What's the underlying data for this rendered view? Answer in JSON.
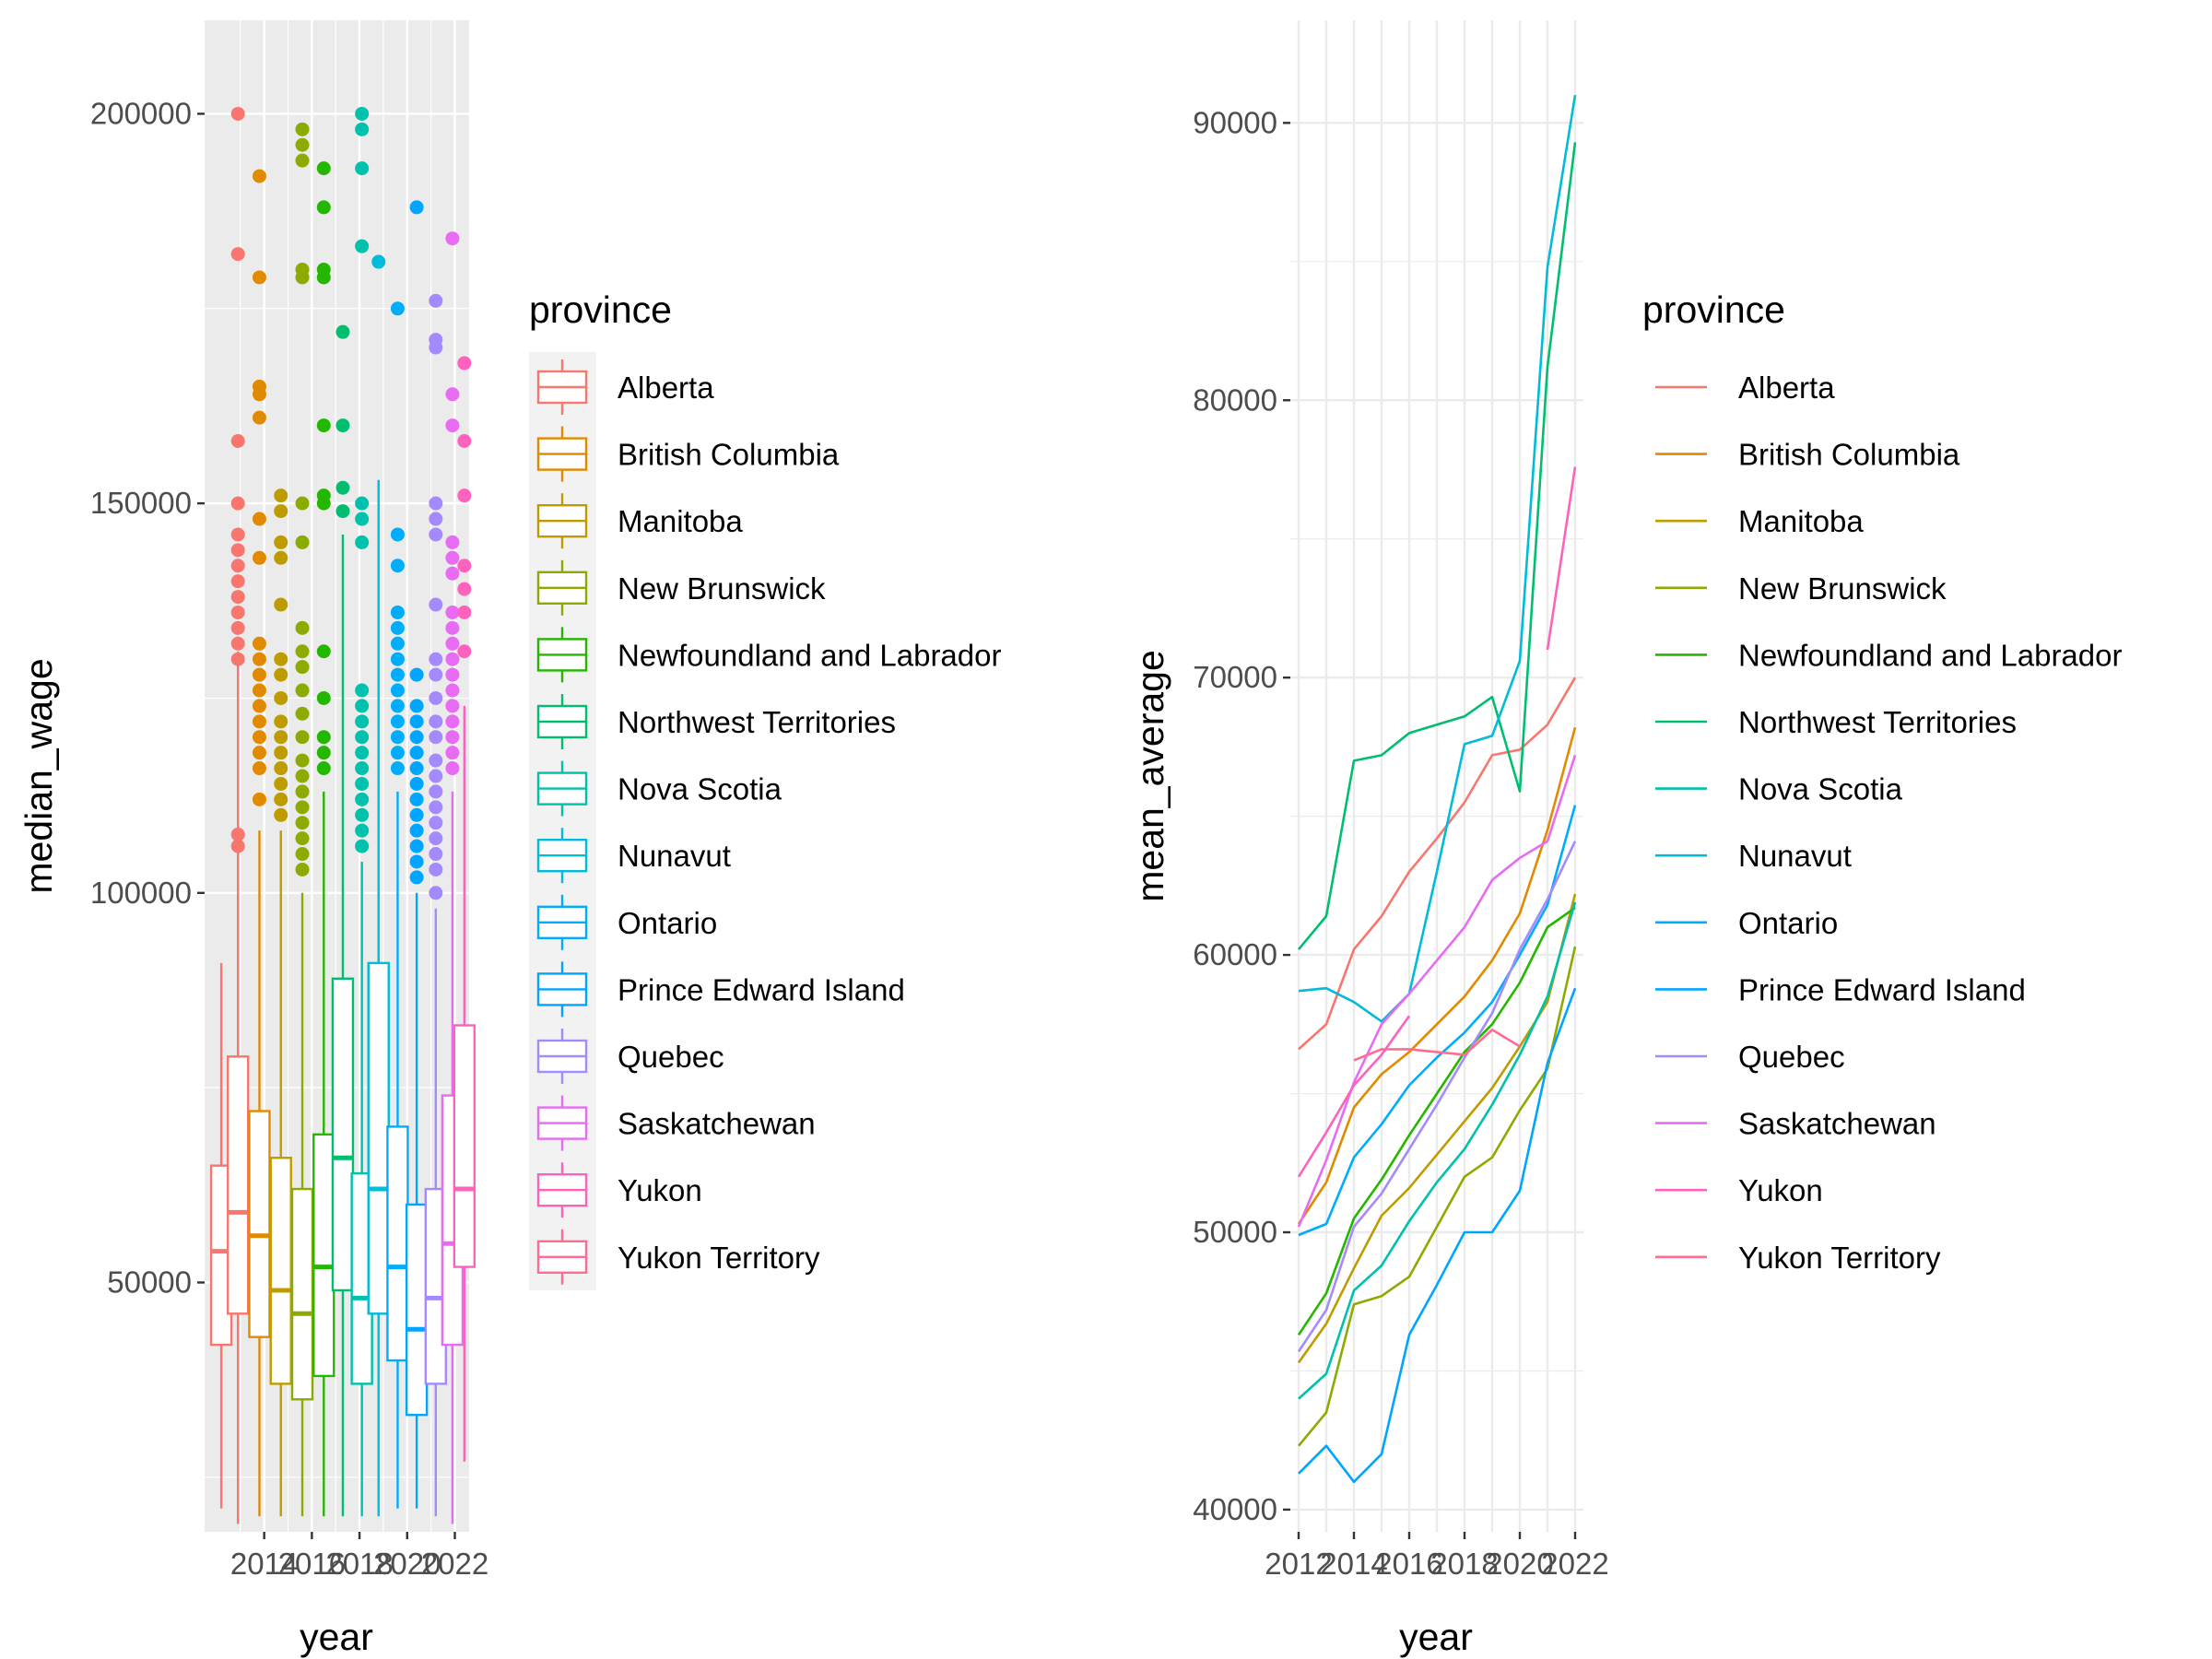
{
  "chart_data": [
    {
      "type": "box",
      "xlabel": "year",
      "ylabel": "median_wage",
      "x_ticks": [
        "2014",
        "2016",
        "2018",
        "2020",
        "2022"
      ],
      "y_ticks": [
        "50000",
        "100000",
        "150000",
        "200000"
      ],
      "ylim": [
        18000,
        212000
      ],
      "xlim": [
        2011.5,
        2022.6
      ],
      "grid": true,
      "legend": {
        "title": "province",
        "position": "right",
        "key": "boxplot"
      },
      "boxes": [
        {
          "province": "Alberta",
          "x": 2012.2,
          "q1": 42000,
          "median": 54000,
          "q3": 65000,
          "low": 21000,
          "high": 91000,
          "outliers": []
        },
        {
          "province": "Alberta",
          "x": 2012.9,
          "q1": 46000,
          "median": 59000,
          "q3": 79000,
          "low": 19000,
          "high": 131000,
          "outliers": [
            106000,
            107500,
            130000,
            132000,
            134000,
            136000,
            138000,
            140000,
            142000,
            144000,
            146000,
            150000,
            158000,
            182000,
            200000
          ]
        },
        {
          "province": "British Columbia",
          "x": 2013.8,
          "q1": 43000,
          "median": 56000,
          "q3": 72000,
          "low": 20000,
          "high": 108000,
          "outliers": [
            112000,
            116000,
            118000,
            120000,
            122000,
            124000,
            126000,
            128000,
            130000,
            132000,
            143000,
            148000,
            161000,
            164000,
            165000,
            179000,
            192000
          ]
        },
        {
          "province": "Manitoba",
          "x": 2014.7,
          "q1": 37000,
          "median": 49000,
          "q3": 66000,
          "low": 20000,
          "high": 108000,
          "outliers": [
            110000,
            112000,
            114000,
            116000,
            118000,
            120000,
            122000,
            125000,
            128000,
            130000,
            137000,
            143000,
            145000,
            149000,
            151000
          ]
        },
        {
          "province": "New Brunswick",
          "x": 2015.6,
          "q1": 35000,
          "median": 46000,
          "q3": 62000,
          "low": 20000,
          "high": 100000,
          "outliers": [
            103000,
            105000,
            107000,
            109000,
            111000,
            113000,
            115000,
            117000,
            120000,
            123000,
            126000,
            129000,
            131000,
            134000,
            145000,
            150000,
            179000,
            180000,
            194000,
            196000,
            198000
          ]
        },
        {
          "province": "Newfoundland and Labrador",
          "x": 2016.5,
          "q1": 38000,
          "median": 52000,
          "q3": 69000,
          "low": 20000,
          "high": 113000,
          "outliers": [
            116000,
            118000,
            120000,
            125000,
            131000,
            150000,
            151000,
            160000,
            179000,
            180000,
            188000,
            193000
          ]
        },
        {
          "province": "Northwest Territories",
          "x": 2017.3,
          "q1": 49000,
          "median": 66000,
          "q3": 89000,
          "low": 20000,
          "high": 146000,
          "outliers": [
            149000,
            152000,
            160000,
            172000
          ]
        },
        {
          "province": "Nova Scotia",
          "x": 2018.1,
          "q1": 37000,
          "median": 48000,
          "q3": 64000,
          "low": 20000,
          "high": 104000,
          "outliers": [
            106000,
            108000,
            110000,
            112000,
            114000,
            116000,
            118000,
            120000,
            122000,
            124000,
            126000,
            145000,
            148000,
            150000,
            183000,
            193000,
            198000,
            200000
          ]
        },
        {
          "province": "Nunavut",
          "x": 2018.8,
          "q1": 46000,
          "median": 62000,
          "q3": 91000,
          "low": 20000,
          "high": 153000,
          "outliers": [
            181000
          ]
        },
        {
          "province": "Ontario",
          "x": 2019.6,
          "q1": 40000,
          "median": 52000,
          "q3": 70000,
          "low": 21000,
          "high": 113000,
          "outliers": [
            116000,
            118000,
            120000,
            122000,
            124000,
            126000,
            128000,
            130000,
            132000,
            134000,
            136000,
            142000,
            146000,
            175000
          ]
        },
        {
          "province": "Prince Edward Island",
          "x": 2020.4,
          "q1": 33000,
          "median": 44000,
          "q3": 60000,
          "low": 21000,
          "high": 100000,
          "outliers": [
            102000,
            104000,
            106000,
            108000,
            110000,
            112000,
            114000,
            116000,
            118000,
            120000,
            122000,
            124000,
            128000,
            188000
          ]
        },
        {
          "province": "Quebec",
          "x": 2021.2,
          "q1": 37000,
          "median": 48000,
          "q3": 62000,
          "low": 20000,
          "high": 98000,
          "outliers": [
            100000,
            103000,
            105000,
            107000,
            109000,
            111000,
            113000,
            115000,
            117000,
            120000,
            122000,
            125000,
            128000,
            130000,
            137000,
            146000,
            148000,
            150000,
            170000,
            171000,
            176000
          ]
        },
        {
          "province": "Saskatchewan",
          "x": 2021.9,
          "q1": 42000,
          "median": 55000,
          "q3": 74000,
          "low": 19000,
          "high": 113000,
          "outliers": [
            116000,
            118000,
            120000,
            122000,
            124000,
            126000,
            128000,
            130000,
            132000,
            134000,
            136000,
            141000,
            143000,
            145000,
            160000,
            164000,
            184000
          ]
        },
        {
          "province": "Yukon",
          "x": 2022.4,
          "q1": 52000,
          "median": 62000,
          "q3": 83000,
          "low": 27000,
          "high": 124000,
          "outliers": [
            131000,
            136000,
            139000,
            142000,
            151000,
            158000,
            168000
          ]
        }
      ]
    },
    {
      "type": "line",
      "xlabel": "year",
      "ylabel": "mean_average",
      "x_ticks": [
        "2012",
        "2014",
        "2016",
        "2018",
        "2020",
        "2022"
      ],
      "y_ticks": [
        "40000",
        "50000",
        "60000",
        "70000",
        "80000",
        "90000"
      ],
      "ylim": [
        39200,
        93700
      ],
      "xlim": [
        2011.7,
        2022.3
      ],
      "grid": true,
      "legend": {
        "title": "province",
        "position": "right",
        "key": "line"
      },
      "x": [
        2012,
        2013,
        2014,
        2015,
        2016,
        2017,
        2018,
        2019,
        2020,
        2021,
        2022
      ],
      "series": [
        {
          "name": "Alberta",
          "values": [
            56600,
            57500,
            60200,
            61400,
            63000,
            64200,
            65500,
            67200,
            67400,
            68300,
            70000
          ]
        },
        {
          "name": "British Columbia",
          "values": [
            50300,
            51800,
            54500,
            55700,
            56500,
            57500,
            58500,
            59800,
            61500,
            64500,
            68200
          ]
        },
        {
          "name": "Manitoba",
          "values": [
            45300,
            46700,
            48700,
            50600,
            51600,
            52800,
            54000,
            55200,
            56700,
            58300,
            62200
          ]
        },
        {
          "name": "New Brunswick",
          "values": [
            42300,
            43500,
            47400,
            47700,
            48400,
            50200,
            52000,
            52700,
            54400,
            55900,
            60300
          ]
        },
        {
          "name": "Newfoundland and Labrador",
          "values": [
            46300,
            47800,
            50500,
            51900,
            53500,
            55000,
            56500,
            57500,
            59000,
            61000,
            61700
          ]
        },
        {
          "name": "Northwest Territories",
          "values": [
            60200,
            61400,
            67000,
            67200,
            68000,
            68300,
            68600,
            69300,
            65900,
            81200,
            89300
          ]
        },
        {
          "name": "Nova Scotia",
          "values": [
            44000,
            44900,
            47900,
            48800,
            50400,
            51800,
            53000,
            54600,
            56400,
            58500,
            61900
          ]
        },
        {
          "name": "Nunavut",
          "values": [
            58700,
            58800,
            58300,
            57600,
            58600,
            63000,
            67600,
            67900,
            70600,
            84800,
            91000
          ]
        },
        {
          "name": "Ontario",
          "values": [
            49900,
            50300,
            52700,
            53900,
            55300,
            56300,
            57200,
            58300,
            60000,
            61800,
            65400
          ]
        },
        {
          "name": "Prince Edward Island",
          "values": [
            41300,
            42300,
            41000,
            42000,
            46300,
            48100,
            50000,
            50000,
            51500,
            56100,
            58800
          ]
        },
        {
          "name": "Quebec",
          "values": [
            45700,
            47200,
            50200,
            51400,
            53000,
            54600,
            56300,
            57900,
            60200,
            62000,
            64100
          ]
        },
        {
          "name": "Saskatchewan",
          "values": [
            50200,
            52600,
            55400,
            57500,
            58600,
            59800,
            61000,
            62700,
            63500,
            64100,
            67200
          ]
        },
        {
          "name": "Yukon",
          "values": [
            52000,
            53600,
            55300,
            56400,
            57800,
            null,
            null,
            null,
            null,
            71000,
            77600
          ]
        },
        {
          "name": "Yukon Territory",
          "values": [
            null,
            null,
            56200,
            56600,
            56600,
            56500,
            56400,
            57300,
            56700,
            null,
            null
          ]
        }
      ]
    }
  ],
  "legend": {
    "title": "province",
    "items": [
      {
        "label": "Alberta",
        "color": "#F8766D"
      },
      {
        "label": "British Columbia",
        "color": "#E18A00"
      },
      {
        "label": "Manitoba",
        "color": "#BE9C00"
      },
      {
        "label": "New Brunswick",
        "color": "#8CAB00"
      },
      {
        "label": "Newfoundland and Labrador",
        "color": "#24B700"
      },
      {
        "label": "Northwest Territories",
        "color": "#00BE70"
      },
      {
        "label": "Nova Scotia",
        "color": "#00C1AB"
      },
      {
        "label": "Nunavut",
        "color": "#00BBDA"
      },
      {
        "label": "Ontario",
        "color": "#00ACFC"
      },
      {
        "label": "Prince Edward Island",
        "color": "#00A5FF"
      },
      {
        "label": "Quebec",
        "color": "#A58AFF"
      },
      {
        "label": "Saskatchewan",
        "color": "#E76BF3"
      },
      {
        "label": "Yukon",
        "color": "#FF62BC"
      },
      {
        "label": "Yukon Territory",
        "color": "#FF6C91"
      }
    ]
  },
  "colors": {
    "panel_background": "#EBEBEB",
    "grid_major": "#FFFFFF",
    "text_tick": "#4D4D4D",
    "text_title": "#000000"
  }
}
